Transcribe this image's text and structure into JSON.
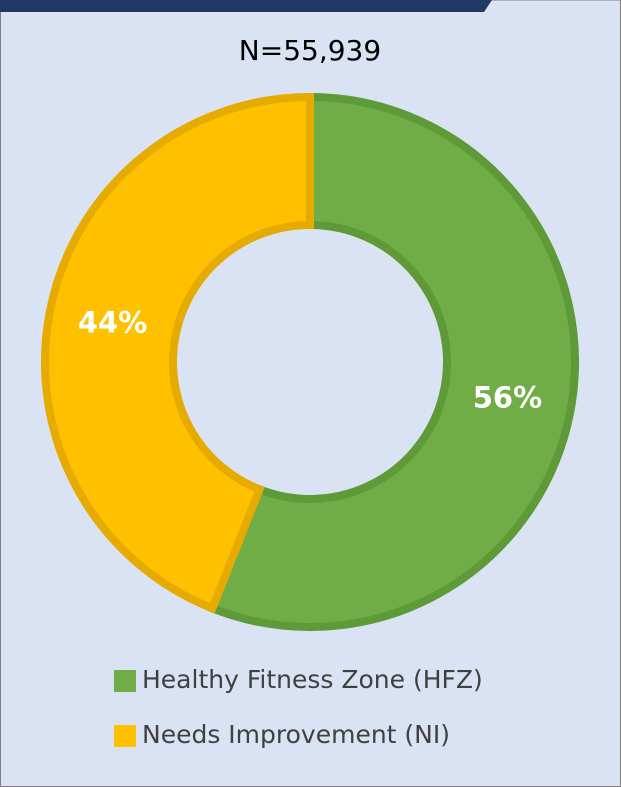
{
  "chart_data": {
    "type": "donut",
    "title": "N=55,939",
    "categories": [
      "Healthy Fitness Zone (HFZ)",
      "Needs Improvement (NI)"
    ],
    "values": [
      56,
      44
    ],
    "value_labels": [
      "56%",
      "44%"
    ],
    "colors": [
      "#70ad47",
      "#ffc000"
    ],
    "edge_colors": [
      "#5e9a38",
      "#e6ab00"
    ],
    "legend": "bottom"
  }
}
